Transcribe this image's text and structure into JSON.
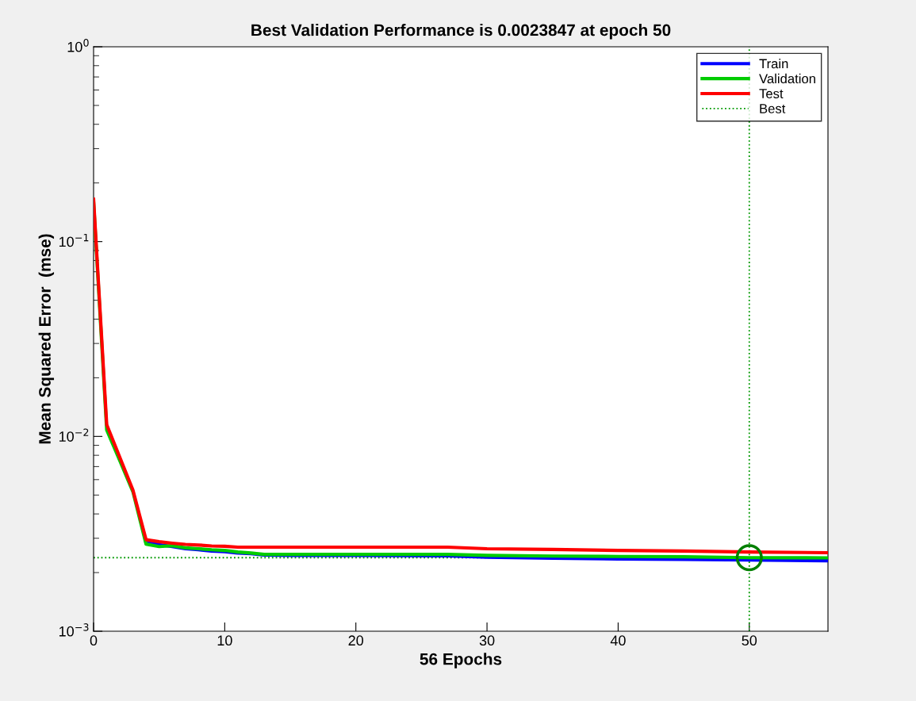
{
  "chart_data": {
    "type": "line",
    "title": "Best Validation Performance is 0.0023847 at epoch 50",
    "xlabel": "56 Epochs",
    "ylabel": "Mean Squared Error  (mse)",
    "x": [
      0,
      1,
      2,
      3,
      4,
      5,
      6,
      7,
      8,
      9,
      10,
      11,
      12,
      13,
      15,
      20,
      27,
      30,
      35,
      40,
      45,
      50,
      56
    ],
    "series": [
      {
        "name": "Train",
        "color": "#0000ff",
        "values": [
          null,
          null,
          null,
          null,
          0.0029,
          0.00278,
          0.00272,
          0.00265,
          0.00262,
          0.00258,
          0.00256,
          0.00252,
          0.0025,
          0.00246,
          0.00245,
          0.00245,
          0.00244,
          0.0024,
          0.00237,
          0.00235,
          0.00234,
          0.00232,
          0.0023
        ]
      },
      {
        "name": "Validation",
        "color": "#00cc00",
        "values": [
          0.16,
          0.0108,
          0.0075,
          0.0052,
          0.0028,
          0.00272,
          0.00275,
          0.00268,
          0.00265,
          0.00262,
          0.0026,
          0.00255,
          0.00252,
          0.00248,
          0.00248,
          0.00248,
          0.00248,
          0.00245,
          0.00243,
          0.00242,
          0.00241,
          0.0023847,
          0.00238
        ]
      },
      {
        "name": "Test",
        "color": "#ff0000",
        "values": [
          0.165,
          0.0115,
          0.0078,
          0.0053,
          0.00295,
          0.00288,
          0.00283,
          0.00279,
          0.00277,
          0.00274,
          0.00273,
          0.0027,
          0.0027,
          0.0027,
          0.0027,
          0.0027,
          0.0027,
          0.00265,
          0.00263,
          0.0026,
          0.00258,
          0.00255,
          0.00253
        ]
      },
      {
        "type": "scatter",
        "color": "#007f00",
        "marker": "circle",
        "x": [
          50
        ],
        "values": [
          0.0023847
        ]
      }
    ],
    "ref_lines": [
      {
        "axis": "x",
        "value": 50,
        "label": "Best",
        "color": "#009900",
        "line_style": "dotted"
      },
      {
        "axis": "y",
        "value": 0.0023847,
        "color": "#009900",
        "line_style": "dotted"
      }
    ],
    "log": "y",
    "xlim": [
      0,
      56
    ],
    "xticks": [
      0,
      10,
      20,
      30,
      40,
      50
    ],
    "ylim": [
      0.001,
      1
    ],
    "yticks": [
      {
        "value": 0.001,
        "label": "10$^{−3}$"
      },
      {
        "value": 0.01,
        "label": "10$^{−2}$"
      },
      {
        "value": 0.1,
        "label": "10$^{−1}$"
      },
      {
        "value": 1,
        "label": "10$^{0}$"
      }
    ],
    "grid": false,
    "legend": "top right"
  }
}
